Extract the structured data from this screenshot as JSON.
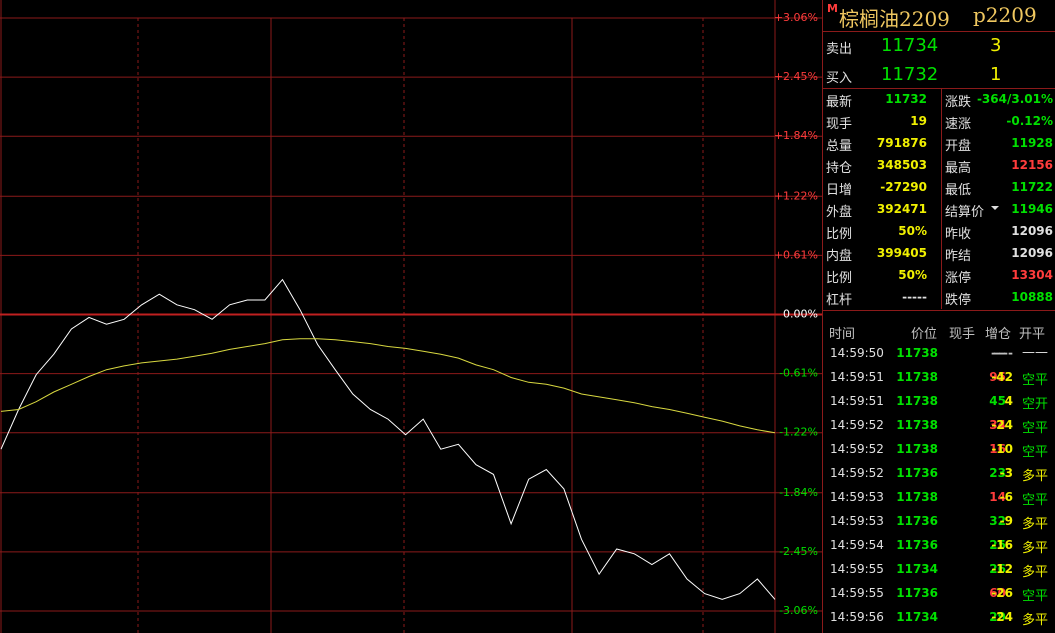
{
  "chart_data": {
    "type": "line",
    "ylim": [
      -3.06,
      3.06
    ],
    "yticks": [
      {
        "value": 3.06,
        "label": "+3.06%"
      },
      {
        "value": 2.45,
        "label": "+2.45%"
      },
      {
        "value": 1.84,
        "label": "+1.84%"
      },
      {
        "value": 1.22,
        "label": "+1.22%"
      },
      {
        "value": 0.61,
        "label": "+0.61%"
      },
      {
        "value": 0,
        "label": "0.00%"
      },
      {
        "value": -0.61,
        "label": "-0.61%"
      },
      {
        "value": -1.22,
        "label": "-1.22%"
      },
      {
        "value": -1.84,
        "label": "-1.84%"
      },
      {
        "value": -2.45,
        "label": "-2.45%"
      },
      {
        "value": -3.06,
        "label": "-3.06%"
      }
    ],
    "grid": true,
    "series": [
      {
        "color": "#ffffff",
        "values": [
          -1.39,
          -0.98,
          -0.62,
          -0.41,
          -0.15,
          -0.03,
          -0.1,
          -0.05,
          0.1,
          0.21,
          0.1,
          0.05,
          -0.05,
          0.1,
          0.15,
          0.15,
          0.36,
          0.05,
          -0.31,
          -0.57,
          -0.82,
          -0.98,
          -1.08,
          -1.24,
          -1.08,
          -1.39,
          -1.34,
          -1.55,
          -1.65,
          -2.16,
          -1.7,
          -1.6,
          -1.8,
          -2.32,
          -2.68,
          -2.42,
          -2.47,
          -2.58,
          -2.47,
          -2.73,
          -2.88,
          -2.94,
          -2.88,
          -2.73,
          -2.94
        ]
      },
      {
        "color": "#d8d840",
        "values": [
          -1.0,
          -0.98,
          -0.9,
          -0.8,
          -0.72,
          -0.64,
          -0.57,
          -0.53,
          -0.5,
          -0.48,
          -0.46,
          -0.43,
          -0.4,
          -0.36,
          -0.33,
          -0.3,
          -0.26,
          -0.25,
          -0.25,
          -0.26,
          -0.28,
          -0.3,
          -0.33,
          -0.35,
          -0.38,
          -0.41,
          -0.45,
          -0.52,
          -0.57,
          -0.65,
          -0.7,
          -0.72,
          -0.76,
          -0.82,
          -0.85,
          -0.88,
          -0.91,
          -0.95,
          -0.98,
          -1.02,
          -1.06,
          -1.1,
          -1.15,
          -1.19,
          -1.22
        ]
      }
    ]
  },
  "header": {
    "badge": "M",
    "name": "棕榈油2209",
    "code": "p2209"
  },
  "order_book": [
    [
      "卖出",
      "11734",
      "3"
    ],
    [
      "买入",
      "11732",
      "1"
    ]
  ],
  "stats": [
    [
      "最新",
      "11732",
      "涨跌",
      "-364/3.01%"
    ],
    [
      "现手",
      "19",
      "速涨",
      "-0.12%"
    ],
    [
      "总量",
      "791876",
      "开盘",
      "11928"
    ],
    [
      "持仓",
      "348503",
      "最高",
      "12156"
    ],
    [
      "日增",
      "-27290",
      "最低",
      "11722"
    ],
    [
      "外盘",
      "392471",
      "结算价",
      "11946"
    ],
    [
      "比例",
      "50%",
      "昨收",
      "12096"
    ],
    [
      "内盘",
      "399405",
      "昨结",
      "12096"
    ],
    [
      "比例",
      "50%",
      "涨停",
      "13304"
    ],
    [
      "杠杆",
      "-----",
      "跌停",
      "10888"
    ]
  ],
  "trades": {
    "header": [
      "时间",
      "价位",
      "现手",
      "增仓",
      "开平"
    ],
    "rows": [
      [
        "14:59:50",
        "11738",
        "---",
        "----",
        "——"
      ],
      [
        "14:59:51",
        "11738",
        "95",
        "-42",
        "空平"
      ],
      [
        "14:59:51",
        "11738",
        "45",
        "4",
        "空开"
      ],
      [
        "14:59:52",
        "11738",
        "34",
        "-24",
        "空平"
      ],
      [
        "14:59:52",
        "11738",
        "16",
        "-10",
        "空平"
      ],
      [
        "14:59:52",
        "11736",
        "23",
        "-3",
        "多平"
      ],
      [
        "14:59:53",
        "11738",
        "14",
        "-6",
        "空平"
      ],
      [
        "14:59:53",
        "11736",
        "32",
        "-9",
        "多平"
      ],
      [
        "14:59:54",
        "11736",
        "25",
        "-16",
        "多平"
      ],
      [
        "14:59:55",
        "11734",
        "26",
        "-12",
        "多平"
      ],
      [
        "14:59:55",
        "11736",
        "60",
        "-26",
        "空平"
      ],
      [
        "14:59:56",
        "11734",
        "29",
        "-24",
        "多平"
      ]
    ]
  }
}
